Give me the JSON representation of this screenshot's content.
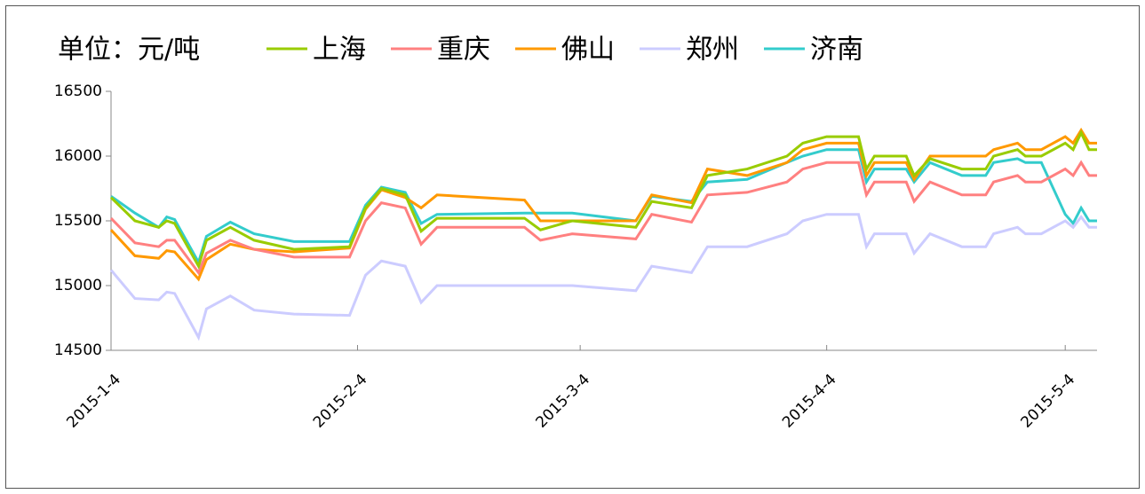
{
  "chart_data": {
    "type": "line",
    "y_label": "单位：元/吨",
    "x": [
      "2015-1-4",
      "2015-1-7",
      "2015-1-10",
      "2015-1-11",
      "2015-1-12",
      "2015-1-15",
      "2015-1-16",
      "2015-1-19",
      "2015-1-22",
      "2015-1-27",
      "2015-2-3",
      "2015-2-5",
      "2015-2-7",
      "2015-2-10",
      "2015-2-12",
      "2015-2-14",
      "2015-2-25",
      "2015-2-27",
      "2015-3-3",
      "2015-3-11",
      "2015-3-13",
      "2015-3-18",
      "2015-3-20",
      "2015-3-25",
      "2015-3-30",
      "2015-4-1",
      "2015-4-4",
      "2015-4-8",
      "2015-4-9",
      "2015-4-10",
      "2015-4-14",
      "2015-4-15",
      "2015-4-17",
      "2015-4-21",
      "2015-4-24",
      "2015-4-25",
      "2015-4-28",
      "2015-4-29",
      "2015-5-1",
      "2015-5-4",
      "2015-5-5",
      "2015-5-6",
      "2015-5-7",
      "2015-5-8"
    ],
    "xlim": [
      "2015-1-4",
      "2015-5-8"
    ],
    "xticks": [
      "2015-1-4",
      "2015-2-4",
      "2015-3-4",
      "2015-4-4",
      "2015-5-4"
    ],
    "ylim": [
      14500,
      16500
    ],
    "yticks": [
      14500,
      15000,
      15500,
      16000,
      16500
    ],
    "series": [
      {
        "name": "上海",
        "color": "#99cc00",
        "values": [
          15680,
          15500,
          15450,
          15500,
          15480,
          15150,
          15350,
          15450,
          15350,
          15280,
          15300,
          15600,
          15750,
          15700,
          15420,
          15520,
          15520,
          15430,
          15500,
          15450,
          15650,
          15600,
          15850,
          15900,
          16000,
          16100,
          16150,
          16150,
          15900,
          16000,
          16000,
          15850,
          15980,
          15900,
          15900,
          16000,
          16050,
          16000,
          16000,
          16100,
          16050,
          16180,
          16050,
          16050
        ]
      },
      {
        "name": "重庆",
        "color": "#ff8080",
        "values": [
          15520,
          15330,
          15300,
          15350,
          15350,
          15100,
          15250,
          15350,
          15280,
          15220,
          15220,
          15500,
          15640,
          15600,
          15320,
          15450,
          15450,
          15350,
          15400,
          15360,
          15550,
          15490,
          15700,
          15720,
          15800,
          15900,
          15950,
          15950,
          15700,
          15800,
          15800,
          15650,
          15800,
          15700,
          15700,
          15800,
          15850,
          15800,
          15800,
          15900,
          15850,
          15950,
          15850,
          15850
        ]
      },
      {
        "name": "佛山",
        "color": "#ff9900",
        "values": [
          15430,
          15230,
          15210,
          15270,
          15260,
          15050,
          15200,
          15320,
          15280,
          15260,
          15290,
          15590,
          15740,
          15680,
          15600,
          15700,
          15660,
          15500,
          15500,
          15500,
          15700,
          15640,
          15900,
          15850,
          15950,
          16050,
          16100,
          16100,
          15850,
          15950,
          15950,
          15820,
          16000,
          16000,
          16000,
          16050,
          16100,
          16050,
          16050,
          16150,
          16100,
          16200,
          16100,
          16100
        ]
      },
      {
        "name": "郑州",
        "color": "#ccccff",
        "values": [
          15120,
          14900,
          14890,
          14950,
          14940,
          14600,
          14820,
          14920,
          14810,
          14780,
          14770,
          15080,
          15190,
          15150,
          14870,
          15000,
          15000,
          15000,
          15000,
          14960,
          15150,
          15100,
          15300,
          15300,
          15400,
          15500,
          15550,
          15550,
          15300,
          15400,
          15400,
          15250,
          15400,
          15300,
          15300,
          15400,
          15450,
          15400,
          15400,
          15500,
          15450,
          15530,
          15450,
          15450
        ]
      },
      {
        "name": "济南",
        "color": "#33cccc",
        "values": [
          15690,
          15560,
          15450,
          15530,
          15510,
          15180,
          15380,
          15490,
          15400,
          15340,
          15340,
          15620,
          15760,
          15720,
          15480,
          15550,
          15560,
          15560,
          15560,
          15500,
          15690,
          15650,
          15800,
          15820,
          15950,
          16000,
          16050,
          16050,
          15800,
          15900,
          15900,
          15800,
          15950,
          15850,
          15850,
          15950,
          15980,
          15950,
          15950,
          15550,
          15480,
          15600,
          15500,
          15500
        ]
      }
    ]
  }
}
